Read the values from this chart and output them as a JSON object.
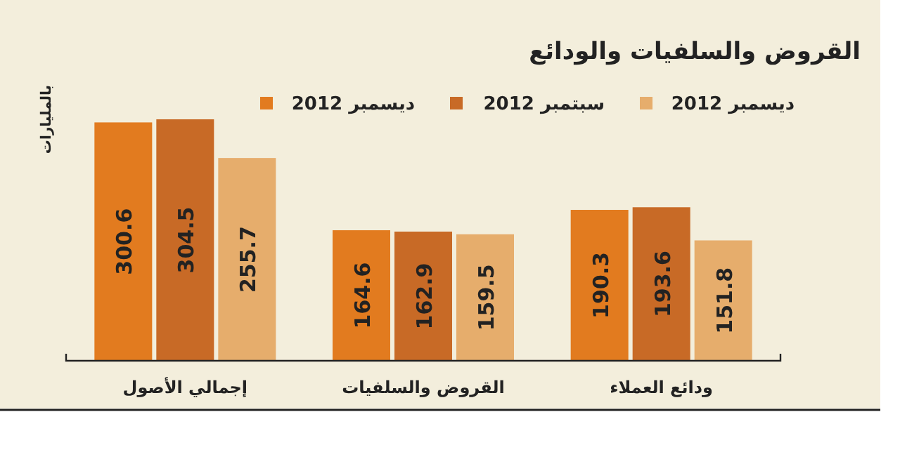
{
  "chart_data": {
    "type": "bar",
    "title": "القروض والسلفيات والودائع",
    "ylabel": "بالمليارات",
    "categories": [
      "إجمالي الأصول",
      "القروض والسلفيات",
      "ودائع العملاء"
    ],
    "series": [
      {
        "name": "ديسمبر 2012",
        "color": "#e27b1f",
        "values": [
          300.6,
          164.6,
          190.3
        ]
      },
      {
        "name": "سبتمبر 2012",
        "color": "#c86a26",
        "values": [
          304.5,
          162.9,
          193.6
        ]
      },
      {
        "name": "ديسمبر 2012",
        "color": "#e6ad6c",
        "values": [
          255.7,
          159.5,
          151.8
        ]
      }
    ],
    "data_labels": true,
    "legend": "top"
  }
}
